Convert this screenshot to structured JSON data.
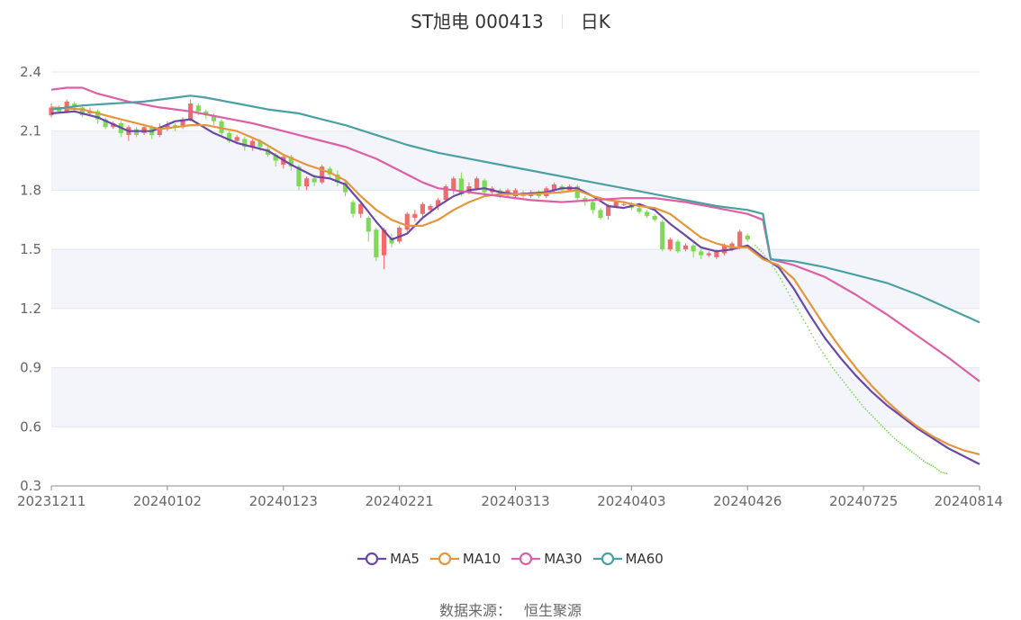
{
  "title": {
    "name": "ST旭电 000413",
    "period": "日K"
  },
  "source": {
    "label": "数据来源：",
    "value": "恒生聚源"
  },
  "colors": {
    "up": "#f26b6b",
    "down": "#7ed957",
    "grid": "#e3e6ef",
    "band": "#f4f5fa",
    "axis": "#8c8c8c",
    "ma5": "#6a48a8",
    "ma10": "#e5963c",
    "ma30": "#dd5fa6",
    "ma60": "#4aa0a3"
  },
  "chart_data": {
    "type": "candlestick",
    "ylim": [
      0.3,
      2.4
    ],
    "y_ticks": [
      "0.3",
      "0.6",
      "0.9",
      "1.2",
      "1.5",
      "1.8",
      "2.1",
      "2.4"
    ],
    "x_ticks": [
      {
        "i": 0,
        "label": "20231211"
      },
      {
        "i": 15,
        "label": "20240102"
      },
      {
        "i": 30,
        "label": "20240123"
      },
      {
        "i": 45,
        "label": "20240221"
      },
      {
        "i": 60,
        "label": "20240313"
      },
      {
        "i": 75,
        "label": "20240403"
      },
      {
        "i": 90,
        "label": "20240426"
      },
      {
        "i": 105,
        "label": "20240725"
      },
      {
        "i": 120,
        "label": "20240814"
      }
    ],
    "n_points": 121,
    "candles": [
      [
        2.18,
        2.22,
        2.24,
        2.17
      ],
      [
        2.22,
        2.2,
        2.23,
        2.19
      ],
      [
        2.2,
        2.25,
        2.26,
        2.19
      ],
      [
        2.24,
        2.22,
        2.25,
        2.2
      ],
      [
        2.22,
        2.18,
        2.23,
        2.17
      ],
      [
        2.19,
        2.2,
        2.22,
        2.18
      ],
      [
        2.2,
        2.16,
        2.21,
        2.14
      ],
      [
        2.16,
        2.12,
        2.17,
        2.11
      ],
      [
        2.12,
        2.14,
        2.15,
        2.11
      ],
      [
        2.14,
        2.09,
        2.15,
        2.07
      ],
      [
        2.08,
        2.12,
        2.13,
        2.05
      ],
      [
        2.11,
        2.08,
        2.12,
        2.07
      ],
      [
        2.09,
        2.12,
        2.13,
        2.08
      ],
      [
        2.12,
        2.08,
        2.13,
        2.06
      ],
      [
        2.08,
        2.12,
        2.14,
        2.07
      ],
      [
        2.11,
        2.13,
        2.15,
        2.1
      ],
      [
        2.13,
        2.12,
        2.14,
        2.1
      ],
      [
        2.12,
        2.16,
        2.17,
        2.11
      ],
      [
        2.16,
        2.24,
        2.26,
        2.15
      ],
      [
        2.23,
        2.2,
        2.24,
        2.18
      ],
      [
        2.2,
        2.18,
        2.21,
        2.16
      ],
      [
        2.18,
        2.15,
        2.19,
        2.13
      ],
      [
        2.15,
        2.09,
        2.16,
        2.07
      ],
      [
        2.09,
        2.05,
        2.1,
        2.04
      ],
      [
        2.05,
        2.07,
        2.08,
        2.04
      ],
      [
        2.06,
        2.02,
        2.07,
        2.0
      ],
      [
        2.02,
        2.05,
        2.06,
        2.0
      ],
      [
        2.05,
        2.02,
        2.06,
        2.0
      ],
      [
        2.01,
        1.98,
        2.02,
        1.97
      ],
      [
        1.98,
        1.95,
        1.99,
        1.92
      ],
      [
        1.93,
        1.97,
        1.98,
        1.91
      ],
      [
        1.97,
        1.92,
        1.98,
        1.9
      ],
      [
        1.92,
        1.82,
        1.93,
        1.8
      ],
      [
        1.82,
        1.86,
        1.87,
        1.8
      ],
      [
        1.86,
        1.84,
        1.88,
        1.82
      ],
      [
        1.84,
        1.92,
        1.93,
        1.83
      ],
      [
        1.91,
        1.88,
        1.92,
        1.86
      ],
      [
        1.88,
        1.84,
        1.9,
        1.82
      ],
      [
        1.84,
        1.79,
        1.85,
        1.77
      ],
      [
        1.74,
        1.68,
        1.75,
        1.66
      ],
      [
        1.68,
        1.73,
        1.74,
        1.66
      ],
      [
        1.66,
        1.59,
        1.67,
        1.54
      ],
      [
        1.6,
        1.46,
        1.61,
        1.44
      ],
      [
        1.47,
        1.6,
        1.61,
        1.4
      ],
      [
        1.56,
        1.53,
        1.58,
        1.51
      ],
      [
        1.54,
        1.61,
        1.62,
        1.53
      ],
      [
        1.6,
        1.68,
        1.69,
        1.59
      ],
      [
        1.66,
        1.68,
        1.7,
        1.64
      ],
      [
        1.68,
        1.73,
        1.74,
        1.66
      ],
      [
        1.7,
        1.72,
        1.73,
        1.68
      ],
      [
        1.72,
        1.75,
        1.76,
        1.7
      ],
      [
        1.75,
        1.82,
        1.83,
        1.74
      ],
      [
        1.8,
        1.86,
        1.87,
        1.78
      ],
      [
        1.86,
        1.78,
        1.89,
        1.77
      ],
      [
        1.79,
        1.82,
        1.84,
        1.78
      ],
      [
        1.81,
        1.86,
        1.87,
        1.8
      ],
      [
        1.85,
        1.79,
        1.86,
        1.78
      ],
      [
        1.79,
        1.81,
        1.82,
        1.77
      ],
      [
        1.8,
        1.78,
        1.81,
        1.76
      ],
      [
        1.78,
        1.8,
        1.81,
        1.77
      ],
      [
        1.77,
        1.8,
        1.81,
        1.76
      ],
      [
        1.79,
        1.77,
        1.8,
        1.76
      ],
      [
        1.77,
        1.79,
        1.8,
        1.76
      ],
      [
        1.79,
        1.77,
        1.8,
        1.76
      ],
      [
        1.77,
        1.81,
        1.82,
        1.76
      ],
      [
        1.8,
        1.83,
        1.84,
        1.79
      ],
      [
        1.82,
        1.8,
        1.83,
        1.79
      ],
      [
        1.8,
        1.82,
        1.83,
        1.79
      ],
      [
        1.82,
        1.76,
        1.83,
        1.75
      ],
      [
        1.76,
        1.74,
        1.77,
        1.72
      ],
      [
        1.74,
        1.7,
        1.75,
        1.68
      ],
      [
        1.7,
        1.66,
        1.71,
        1.65
      ],
      [
        1.67,
        1.72,
        1.73,
        1.65
      ],
      [
        1.72,
        1.74,
        1.75,
        1.71
      ],
      [
        1.73,
        1.73,
        1.74,
        1.72
      ],
      [
        1.73,
        1.71,
        1.74,
        1.7
      ],
      [
        1.71,
        1.69,
        1.72,
        1.68
      ],
      [
        1.69,
        1.67,
        1.7,
        1.66
      ],
      [
        1.67,
        1.65,
        1.68,
        1.64
      ],
      [
        1.64,
        1.5,
        1.65,
        1.49
      ],
      [
        1.5,
        1.55,
        1.56,
        1.49
      ],
      [
        1.54,
        1.49,
        1.55,
        1.48
      ],
      [
        1.5,
        1.52,
        1.53,
        1.49
      ],
      [
        1.52,
        1.49,
        1.53,
        1.46
      ],
      [
        1.49,
        1.47,
        1.5,
        1.45
      ],
      [
        1.47,
        1.48,
        1.49,
        1.46
      ],
      [
        1.46,
        1.49,
        1.5,
        1.45
      ],
      [
        1.48,
        1.52,
        1.53,
        1.47
      ],
      [
        1.5,
        1.53,
        1.54,
        1.49
      ],
      [
        1.51,
        1.59,
        1.6,
        1.5
      ],
      [
        1.57,
        1.55,
        1.58,
        1.54
      ]
    ],
    "projection": [
      1.52,
      1.48,
      1.43,
      1.37,
      1.3,
      1.23,
      1.16,
      1.09,
      1.02,
      0.96,
      0.9,
      0.85,
      0.8,
      0.75,
      0.7,
      0.66,
      0.62,
      0.58,
      0.54,
      0.51,
      0.48,
      0.45,
      0.42,
      0.4,
      0.37,
      0.36
    ],
    "series": [
      {
        "name": "MA5",
        "color": "#6a48a8",
        "points": [
          [
            0,
            2.19
          ],
          [
            3,
            2.2
          ],
          [
            6,
            2.17
          ],
          [
            10,
            2.1
          ],
          [
            13,
            2.1
          ],
          [
            16,
            2.15
          ],
          [
            18,
            2.16
          ],
          [
            21,
            2.09
          ],
          [
            24,
            2.04
          ],
          [
            28,
            2.0
          ],
          [
            31,
            1.93
          ],
          [
            34,
            1.87
          ],
          [
            36,
            1.86
          ],
          [
            38,
            1.83
          ],
          [
            40,
            1.74
          ],
          [
            42,
            1.64
          ],
          [
            44,
            1.55
          ],
          [
            46,
            1.58
          ],
          [
            48,
            1.66
          ],
          [
            50,
            1.72
          ],
          [
            52,
            1.77
          ],
          [
            54,
            1.8
          ],
          [
            56,
            1.81
          ],
          [
            58,
            1.79
          ],
          [
            60,
            1.78
          ],
          [
            64,
            1.79
          ],
          [
            66,
            1.81
          ],
          [
            68,
            1.81
          ],
          [
            70,
            1.77
          ],
          [
            72,
            1.72
          ],
          [
            74,
            1.71
          ],
          [
            76,
            1.73
          ],
          [
            78,
            1.7
          ],
          [
            80,
            1.63
          ],
          [
            82,
            1.57
          ],
          [
            84,
            1.51
          ],
          [
            86,
            1.49
          ],
          [
            88,
            1.5
          ],
          [
            90,
            1.52
          ],
          [
            92,
            1.46
          ],
          [
            94,
            1.41
          ],
          [
            96,
            1.3
          ],
          [
            98,
            1.17
          ],
          [
            100,
            1.05
          ],
          [
            102,
            0.95
          ],
          [
            104,
            0.86
          ],
          [
            106,
            0.78
          ],
          [
            108,
            0.71
          ],
          [
            110,
            0.65
          ],
          [
            112,
            0.59
          ],
          [
            114,
            0.54
          ],
          [
            116,
            0.49
          ],
          [
            118,
            0.45
          ],
          [
            120,
            0.41
          ]
        ]
      },
      {
        "name": "MA10",
        "color": "#e5963c",
        "points": [
          [
            0,
            2.22
          ],
          [
            4,
            2.21
          ],
          [
            8,
            2.17
          ],
          [
            12,
            2.13
          ],
          [
            14,
            2.11
          ],
          [
            16,
            2.12
          ],
          [
            18,
            2.13
          ],
          [
            20,
            2.13
          ],
          [
            24,
            2.1
          ],
          [
            27,
            2.05
          ],
          [
            30,
            1.98
          ],
          [
            33,
            1.93
          ],
          [
            36,
            1.89
          ],
          [
            38,
            1.85
          ],
          [
            40,
            1.77
          ],
          [
            42,
            1.7
          ],
          [
            44,
            1.65
          ],
          [
            46,
            1.62
          ],
          [
            48,
            1.62
          ],
          [
            50,
            1.65
          ],
          [
            52,
            1.7
          ],
          [
            54,
            1.74
          ],
          [
            56,
            1.77
          ],
          [
            58,
            1.78
          ],
          [
            62,
            1.78
          ],
          [
            66,
            1.79
          ],
          [
            68,
            1.8
          ],
          [
            70,
            1.77
          ],
          [
            72,
            1.75
          ],
          [
            74,
            1.74
          ],
          [
            76,
            1.72
          ],
          [
            78,
            1.71
          ],
          [
            80,
            1.68
          ],
          [
            82,
            1.62
          ],
          [
            84,
            1.56
          ],
          [
            86,
            1.53
          ],
          [
            88,
            1.51
          ],
          [
            90,
            1.51
          ],
          [
            92,
            1.45
          ],
          [
            94,
            1.42
          ],
          [
            96,
            1.35
          ],
          [
            98,
            1.23
          ],
          [
            100,
            1.11
          ],
          [
            102,
            1.0
          ],
          [
            104,
            0.9
          ],
          [
            106,
            0.81
          ],
          [
            108,
            0.73
          ],
          [
            110,
            0.66
          ],
          [
            112,
            0.6
          ],
          [
            114,
            0.55
          ],
          [
            116,
            0.51
          ],
          [
            118,
            0.48
          ],
          [
            120,
            0.46
          ]
        ]
      },
      {
        "name": "MA30",
        "color": "#dd5fa6",
        "points": [
          [
            0,
            2.31
          ],
          [
            2,
            2.32
          ],
          [
            4,
            2.32
          ],
          [
            6,
            2.29
          ],
          [
            8,
            2.27
          ],
          [
            10,
            2.25
          ],
          [
            14,
            2.22
          ],
          [
            18,
            2.2
          ],
          [
            22,
            2.17
          ],
          [
            26,
            2.14
          ],
          [
            30,
            2.1
          ],
          [
            34,
            2.06
          ],
          [
            38,
            2.02
          ],
          [
            42,
            1.96
          ],
          [
            44,
            1.92
          ],
          [
            46,
            1.88
          ],
          [
            48,
            1.84
          ],
          [
            50,
            1.81
          ],
          [
            54,
            1.79
          ],
          [
            58,
            1.77
          ],
          [
            62,
            1.75
          ],
          [
            66,
            1.74
          ],
          [
            70,
            1.75
          ],
          [
            74,
            1.76
          ],
          [
            78,
            1.76
          ],
          [
            82,
            1.74
          ],
          [
            86,
            1.71
          ],
          [
            90,
            1.68
          ],
          [
            92,
            1.65
          ],
          [
            93,
            1.45
          ],
          [
            96,
            1.42
          ],
          [
            100,
            1.36
          ],
          [
            104,
            1.27
          ],
          [
            108,
            1.17
          ],
          [
            112,
            1.06
          ],
          [
            116,
            0.95
          ],
          [
            120,
            0.83
          ]
        ]
      },
      {
        "name": "MA60",
        "color": "#4aa0a3",
        "points": [
          [
            0,
            2.21
          ],
          [
            4,
            2.23
          ],
          [
            8,
            2.24
          ],
          [
            12,
            2.25
          ],
          [
            16,
            2.27
          ],
          [
            18,
            2.28
          ],
          [
            20,
            2.27
          ],
          [
            24,
            2.24
          ],
          [
            28,
            2.21
          ],
          [
            32,
            2.19
          ],
          [
            34,
            2.17
          ],
          [
            38,
            2.13
          ],
          [
            42,
            2.08
          ],
          [
            46,
            2.03
          ],
          [
            50,
            1.99
          ],
          [
            54,
            1.96
          ],
          [
            58,
            1.93
          ],
          [
            62,
            1.9
          ],
          [
            66,
            1.87
          ],
          [
            70,
            1.84
          ],
          [
            74,
            1.81
          ],
          [
            78,
            1.78
          ],
          [
            82,
            1.75
          ],
          [
            86,
            1.72
          ],
          [
            90,
            1.7
          ],
          [
            92,
            1.68
          ],
          [
            93,
            1.45
          ],
          [
            96,
            1.44
          ],
          [
            100,
            1.41
          ],
          [
            104,
            1.37
          ],
          [
            108,
            1.33
          ],
          [
            112,
            1.27
          ],
          [
            116,
            1.2
          ],
          [
            120,
            1.13
          ]
        ]
      }
    ]
  }
}
